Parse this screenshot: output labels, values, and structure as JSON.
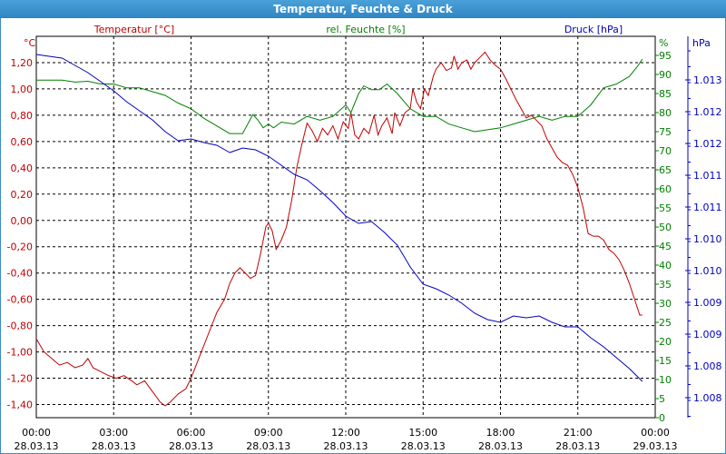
{
  "window": {
    "title": "Temperatur, Feuchte & Druck"
  },
  "colors": {
    "temperature": "#c00000",
    "humidity": "#008000",
    "pressure": "#0000c0",
    "grid": "#000000",
    "title_bg": "#3a93cf"
  },
  "chart_data": {
    "type": "line",
    "title": "Temperatur, Feuchte & Druck",
    "grid": true,
    "x": {
      "ticks": [
        {
          "time": "00:00",
          "date": "28.03.13"
        },
        {
          "time": "03:00",
          "date": "28.03.13"
        },
        {
          "time": "06:00",
          "date": "28.03.13"
        },
        {
          "time": "09:00",
          "date": "28.03.13"
        },
        {
          "time": "12:00",
          "date": "28.03.13"
        },
        {
          "time": "15:00",
          "date": "28.03.13"
        },
        {
          "time": "18:00",
          "date": "28.03.13"
        },
        {
          "time": "21:00",
          "date": "28.03.13"
        },
        {
          "time": "00:00",
          "date": "29.03.13"
        }
      ],
      "range_hours": [
        0,
        24
      ]
    },
    "axes": {
      "temperature": {
        "unit": "°C",
        "ylim": [
          -1.5,
          1.4
        ],
        "ticks": [
          "1,20",
          "1,00",
          "0,80",
          "0,60",
          "0,40",
          "0,20",
          "0,00",
          "-0,20",
          "-0,40",
          "-0,60",
          "-0,80",
          "-1,00",
          "-1,20",
          "-1,40"
        ],
        "tick_values": [
          1.2,
          1.0,
          0.8,
          0.6,
          0.4,
          0.2,
          0.0,
          -0.2,
          -0.4,
          -0.6,
          -0.8,
          -1.0,
          -1.2,
          -1.4
        ]
      },
      "humidity": {
        "unit": "%",
        "ylim": [
          0,
          100
        ],
        "ticks": [
          "95",
          "90",
          "85",
          "80",
          "75",
          "70",
          "65",
          "60",
          "55",
          "50",
          "45",
          "40",
          "35",
          "30",
          "25",
          "20",
          "15",
          "10",
          "5",
          "0"
        ],
        "tick_values": [
          95,
          90,
          85,
          80,
          75,
          70,
          65,
          60,
          55,
          50,
          45,
          40,
          35,
          30,
          25,
          20,
          15,
          10,
          5,
          0
        ]
      },
      "pressure": {
        "unit": "hPa",
        "ticks": [
          "1.013",
          "1.012",
          "1.012",
          "1.011",
          "1.011",
          "1.010",
          "1.010",
          "1.009",
          "1.009",
          "1.008",
          "1.008"
        ]
      }
    },
    "series": [
      {
        "name": "Temperatur [°C]",
        "axis": "temperature",
        "points": [
          [
            0,
            -0.9
          ],
          [
            0.3,
            -1.0
          ],
          [
            0.6,
            -1.05
          ],
          [
            0.9,
            -1.1
          ],
          [
            1.2,
            -1.08
          ],
          [
            1.5,
            -1.12
          ],
          [
            1.8,
            -1.1
          ],
          [
            2.0,
            -1.05
          ],
          [
            2.2,
            -1.12
          ],
          [
            2.5,
            -1.15
          ],
          [
            2.8,
            -1.18
          ],
          [
            3.1,
            -1.2
          ],
          [
            3.4,
            -1.18
          ],
          [
            3.7,
            -1.22
          ],
          [
            3.9,
            -1.25
          ],
          [
            4.2,
            -1.22
          ],
          [
            4.5,
            -1.3
          ],
          [
            4.8,
            -1.38
          ],
          [
            5.0,
            -1.41
          ],
          [
            5.2,
            -1.38
          ],
          [
            5.5,
            -1.32
          ],
          [
            5.8,
            -1.28
          ],
          [
            6.0,
            -1.2
          ],
          [
            6.2,
            -1.1
          ],
          [
            6.5,
            -0.95
          ],
          [
            6.8,
            -0.8
          ],
          [
            7.0,
            -0.7
          ],
          [
            7.3,
            -0.6
          ],
          [
            7.5,
            -0.48
          ],
          [
            7.7,
            -0.4
          ],
          [
            7.9,
            -0.36
          ],
          [
            8.1,
            -0.4
          ],
          [
            8.3,
            -0.44
          ],
          [
            8.5,
            -0.42
          ],
          [
            8.7,
            -0.25
          ],
          [
            8.9,
            -0.05
          ],
          [
            9.0,
            -0.02
          ],
          [
            9.15,
            -0.08
          ],
          [
            9.3,
            -0.22
          ],
          [
            9.5,
            -0.15
          ],
          [
            9.7,
            -0.05
          ],
          [
            9.9,
            0.15
          ],
          [
            10.1,
            0.4
          ],
          [
            10.3,
            0.58
          ],
          [
            10.5,
            0.74
          ],
          [
            10.7,
            0.68
          ],
          [
            10.9,
            0.6
          ],
          [
            11.1,
            0.7
          ],
          [
            11.3,
            0.65
          ],
          [
            11.5,
            0.72
          ],
          [
            11.7,
            0.62
          ],
          [
            11.9,
            0.75
          ],
          [
            12.1,
            0.7
          ],
          [
            12.2,
            0.82
          ],
          [
            12.35,
            0.65
          ],
          [
            12.5,
            0.62
          ],
          [
            12.7,
            0.7
          ],
          [
            12.9,
            0.66
          ],
          [
            13.1,
            0.8
          ],
          [
            13.25,
            0.65
          ],
          [
            13.4,
            0.72
          ],
          [
            13.6,
            0.78
          ],
          [
            13.8,
            0.66
          ],
          [
            13.9,
            0.82
          ],
          [
            14.1,
            0.72
          ],
          [
            14.3,
            0.82
          ],
          [
            14.5,
            0.85
          ],
          [
            14.6,
            1.0
          ],
          [
            14.75,
            0.9
          ],
          [
            14.9,
            0.85
          ],
          [
            15.05,
            1.0
          ],
          [
            15.2,
            0.95
          ],
          [
            15.4,
            1.1
          ],
          [
            15.5,
            1.15
          ],
          [
            15.7,
            1.2
          ],
          [
            15.9,
            1.14
          ],
          [
            16.1,
            1.16
          ],
          [
            16.2,
            1.25
          ],
          [
            16.35,
            1.15
          ],
          [
            16.5,
            1.2
          ],
          [
            16.7,
            1.22
          ],
          [
            16.85,
            1.15
          ],
          [
            17.0,
            1.2
          ],
          [
            17.2,
            1.24
          ],
          [
            17.4,
            1.28
          ],
          [
            17.6,
            1.22
          ],
          [
            17.8,
            1.18
          ],
          [
            18.0,
            1.15
          ],
          [
            18.2,
            1.08
          ],
          [
            18.4,
            1.0
          ],
          [
            18.6,
            0.92
          ],
          [
            18.8,
            0.85
          ],
          [
            19.0,
            0.78
          ],
          [
            19.2,
            0.8
          ],
          [
            19.4,
            0.76
          ],
          [
            19.6,
            0.72
          ],
          [
            19.8,
            0.62
          ],
          [
            20.0,
            0.55
          ],
          [
            20.2,
            0.48
          ],
          [
            20.4,
            0.44
          ],
          [
            20.6,
            0.42
          ],
          [
            20.8,
            0.35
          ],
          [
            21.0,
            0.25
          ],
          [
            21.2,
            0.1
          ],
          [
            21.4,
            -0.1
          ],
          [
            21.6,
            -0.12
          ],
          [
            21.8,
            -0.12
          ],
          [
            22.0,
            -0.15
          ],
          [
            22.2,
            -0.22
          ],
          [
            22.4,
            -0.25
          ],
          [
            22.6,
            -0.3
          ],
          [
            22.8,
            -0.38
          ],
          [
            23.0,
            -0.48
          ],
          [
            23.2,
            -0.6
          ],
          [
            23.4,
            -0.72
          ],
          [
            23.5,
            -0.72
          ]
        ]
      },
      {
        "name": "rel. Feuchte [%]",
        "axis": "humidity",
        "points": [
          [
            0,
            88.5
          ],
          [
            0.5,
            88.5
          ],
          [
            1.0,
            88.5
          ],
          [
            1.5,
            88.0
          ],
          [
            2.0,
            88.2
          ],
          [
            2.5,
            87.5
          ],
          [
            3.0,
            87.5
          ],
          [
            3.5,
            86.5
          ],
          [
            4.0,
            86.5
          ],
          [
            4.5,
            85.5
          ],
          [
            5.0,
            84.5
          ],
          [
            5.5,
            82.5
          ],
          [
            6.0,
            81.0
          ],
          [
            6.5,
            78.5
          ],
          [
            7.0,
            76.5
          ],
          [
            7.5,
            74.5
          ],
          [
            8.0,
            74.5
          ],
          [
            8.2,
            77.0
          ],
          [
            8.4,
            79.5
          ],
          [
            8.6,
            78.0
          ],
          [
            8.8,
            76.0
          ],
          [
            9.0,
            77.0
          ],
          [
            9.2,
            76.0
          ],
          [
            9.5,
            77.5
          ],
          [
            10.0,
            77.0
          ],
          [
            10.5,
            79.0
          ],
          [
            11.0,
            78.0
          ],
          [
            11.5,
            79.0
          ],
          [
            12.0,
            82.0
          ],
          [
            12.2,
            80.0
          ],
          [
            12.5,
            85.0
          ],
          [
            12.7,
            87.0
          ],
          [
            13.0,
            86.0
          ],
          [
            13.3,
            86.0
          ],
          [
            13.6,
            87.5
          ],
          [
            14.0,
            85.0
          ],
          [
            14.5,
            81.0
          ],
          [
            15.0,
            79.0
          ],
          [
            15.5,
            79.0
          ],
          [
            16.0,
            77.0
          ],
          [
            16.5,
            76.0
          ],
          [
            17.0,
            75.0
          ],
          [
            17.5,
            75.5
          ],
          [
            18.0,
            76.0
          ],
          [
            18.5,
            77.0
          ],
          [
            19.0,
            78.0
          ],
          [
            19.5,
            79.0
          ],
          [
            20.0,
            78.0
          ],
          [
            20.5,
            79.0
          ],
          [
            21.0,
            79.0
          ],
          [
            21.5,
            82.0
          ],
          [
            22.0,
            86.5
          ],
          [
            22.5,
            87.5
          ],
          [
            23.0,
            89.5
          ],
          [
            23.3,
            92.0
          ],
          [
            23.5,
            94.0
          ]
        ]
      },
      {
        "name": "Druck [hPa]",
        "axis": "pressure",
        "points": [
          [
            0,
            60
          ],
          [
            0.5,
            62
          ],
          [
            1.0,
            64
          ],
          [
            1.5,
            72
          ],
          [
            2.0,
            80
          ],
          [
            2.5,
            90
          ],
          [
            3.0,
            100
          ],
          [
            3.5,
            112
          ],
          [
            4.0,
            122
          ],
          [
            4.5,
            132
          ],
          [
            5.0,
            145
          ],
          [
            5.5,
            155
          ],
          [
            6.0,
            153
          ],
          [
            6.5,
            157
          ],
          [
            7.0,
            160
          ],
          [
            7.5,
            168
          ],
          [
            8.0,
            163
          ],
          [
            8.5,
            165
          ],
          [
            9.0,
            172
          ],
          [
            9.5,
            182
          ],
          [
            10.0,
            192
          ],
          [
            10.5,
            198
          ],
          [
            11.0,
            210
          ],
          [
            11.5,
            223
          ],
          [
            12.0,
            238
          ],
          [
            12.5,
            246
          ],
          [
            13.0,
            244
          ],
          [
            13.5,
            256
          ],
          [
            14.0,
            270
          ],
          [
            14.5,
            294
          ],
          [
            15.0,
            313
          ],
          [
            15.5,
            318
          ],
          [
            16.0,
            325
          ],
          [
            16.5,
            334
          ],
          [
            17.0,
            345
          ],
          [
            17.5,
            352
          ],
          [
            18.0,
            355
          ],
          [
            18.5,
            348
          ],
          [
            19.0,
            350
          ],
          [
            19.5,
            348
          ],
          [
            20.0,
            355
          ],
          [
            20.5,
            360
          ],
          [
            21.0,
            360
          ],
          [
            21.5,
            372
          ],
          [
            22.0,
            382
          ],
          [
            22.5,
            394
          ],
          [
            23.0,
            406
          ],
          [
            23.5,
            420
          ]
        ]
      }
    ]
  }
}
